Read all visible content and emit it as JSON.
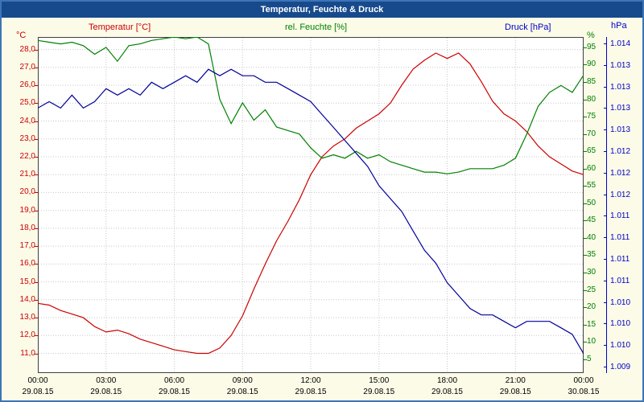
{
  "window": {
    "title": "Temperatur, Feuchte & Druck"
  },
  "legend": {
    "temperature": "Temperatur [°C]",
    "humidity": "rel. Feuchte [%]",
    "pressure": "Druck [hPa]"
  },
  "units": {
    "left": "°C",
    "right": "%",
    "far_right": "hPa"
  },
  "colors": {
    "temp": "#cc0000",
    "humidity": "#008000",
    "pressure": "#000099",
    "pressure_label": "#0000cc",
    "grid": "#c8c8c8",
    "plot_border": "#404040",
    "title_bg": "#174a8c",
    "window_border": "#3d74b8",
    "background": "#fbfbe8",
    "axis_text": "#000000"
  },
  "chart_data": {
    "type": "line",
    "title": "Temperatur, Feuchte & Druck",
    "x_unit": "hours",
    "x_range": [
      0,
      24
    ],
    "grid": true,
    "x": [
      0,
      0.5,
      1,
      1.5,
      2,
      2.5,
      3,
      3.5,
      4,
      4.5,
      5,
      5.5,
      6,
      6.5,
      7,
      7.5,
      8,
      8.5,
      9,
      9.5,
      10,
      10.5,
      11,
      11.5,
      12,
      12.5,
      13,
      13.5,
      14,
      14.5,
      15,
      15.5,
      16,
      16.5,
      17,
      17.5,
      18,
      18.5,
      19,
      19.5,
      20,
      20.5,
      21,
      21.5,
      22,
      22.5,
      23,
      23.5,
      24
    ],
    "series": [
      {
        "name": "Temperatur [°C]",
        "axis": "temp",
        "color_key": "temp",
        "values": [
          13.8,
          13.7,
          13.4,
          13.2,
          13.0,
          12.5,
          12.2,
          12.3,
          12.1,
          11.8,
          11.6,
          11.4,
          11.2,
          11.1,
          11.0,
          11.0,
          11.3,
          12.0,
          13.1,
          14.6,
          16.0,
          17.3,
          18.4,
          19.6,
          21.0,
          22.0,
          22.6,
          23.0,
          23.6,
          24.0,
          24.4,
          25.0,
          26.0,
          26.9,
          27.4,
          27.8,
          27.5,
          27.8,
          27.2,
          26.2,
          25.1,
          24.4,
          24.0,
          23.4,
          22.6,
          22.0,
          21.6,
          21.2,
          21.0
        ]
      },
      {
        "name": "rel. Feuchte [%]",
        "axis": "humidity",
        "color_key": "humidity",
        "values": [
          97,
          96.5,
          96,
          96.5,
          95.5,
          93,
          95,
          91,
          95.5,
          96,
          97,
          97.5,
          98,
          97.5,
          98,
          96,
          80,
          73,
          79,
          74,
          77,
          72,
          71,
          70,
          66,
          63,
          64,
          63,
          65,
          63,
          64,
          62,
          61,
          60,
          59,
          59,
          58.5,
          59,
          60,
          60,
          60,
          61,
          63,
          70,
          78,
          82,
          84,
          82,
          87
        ]
      },
      {
        "name": "Druck [hPa]",
        "axis": "pressure",
        "color_key": "pressure",
        "values": [
          1.013,
          1.0131,
          1.013,
          1.0132,
          1.013,
          1.0131,
          1.0133,
          1.0132,
          1.0133,
          1.0132,
          1.0134,
          1.0133,
          1.0134,
          1.0135,
          1.0134,
          1.0136,
          1.0135,
          1.0136,
          1.0135,
          1.0135,
          1.0134,
          1.0134,
          1.0133,
          1.0132,
          1.0131,
          1.0129,
          1.0127,
          1.0125,
          1.0123,
          1.0121,
          1.0118,
          1.0116,
          1.0114,
          1.0111,
          1.0108,
          1.0106,
          1.0103,
          1.0101,
          1.0099,
          1.0098,
          1.0098,
          1.0097,
          1.0096,
          1.0097,
          1.0097,
          1.0097,
          1.0096,
          1.0095,
          1.0092
        ]
      }
    ],
    "axes": {
      "temp": {
        "unit": "°C",
        "min": 9.9,
        "max": 28.7,
        "tick_values": [
          28,
          27,
          26,
          25,
          24,
          23,
          22,
          21,
          20,
          19,
          18,
          17,
          16,
          15,
          14,
          13,
          12,
          11
        ],
        "tick_labels": [
          "28,0",
          "27,0",
          "26,0",
          "25,0",
          "24,0",
          "23,0",
          "22,0",
          "21,0",
          "20,0",
          "19,0",
          "18,0",
          "17,0",
          "16,0",
          "15,0",
          "14,0",
          "13,0",
          "12,0",
          "11,0"
        ]
      },
      "humidity": {
        "unit": "%",
        "min": 1,
        "max": 98,
        "tick_values": [
          95,
          90,
          85,
          80,
          75,
          70,
          65,
          60,
          55,
          50,
          45,
          40,
          35,
          30,
          25,
          20,
          15,
          10,
          5
        ]
      },
      "pressure": {
        "unit": "hPa",
        "min": 1.0089,
        "max": 1.0141,
        "tick_top": 1.014,
        "tick_step": 0.00033333,
        "tick_labels": [
          "1.014",
          "1.013",
          "1.013",
          "1.013",
          "1.013",
          "1.012",
          "1.012",
          "1.012",
          "1.011",
          "1.011",
          "1.011",
          "1.011",
          "1.010",
          "1.010",
          "1.010",
          "1.009"
        ]
      },
      "x": {
        "tick_hours": [
          0,
          3,
          6,
          9,
          12,
          15,
          18,
          21,
          24
        ],
        "tick_times": [
          "00:00",
          "03:00",
          "06:00",
          "09:00",
          "12:00",
          "15:00",
          "18:00",
          "21:00",
          "00:00"
        ],
        "tick_dates": [
          "29.08.15",
          "29.08.15",
          "29.08.15",
          "29.08.15",
          "29.08.15",
          "29.08.15",
          "29.08.15",
          "29.08.15",
          "30.08.15"
        ]
      }
    }
  }
}
